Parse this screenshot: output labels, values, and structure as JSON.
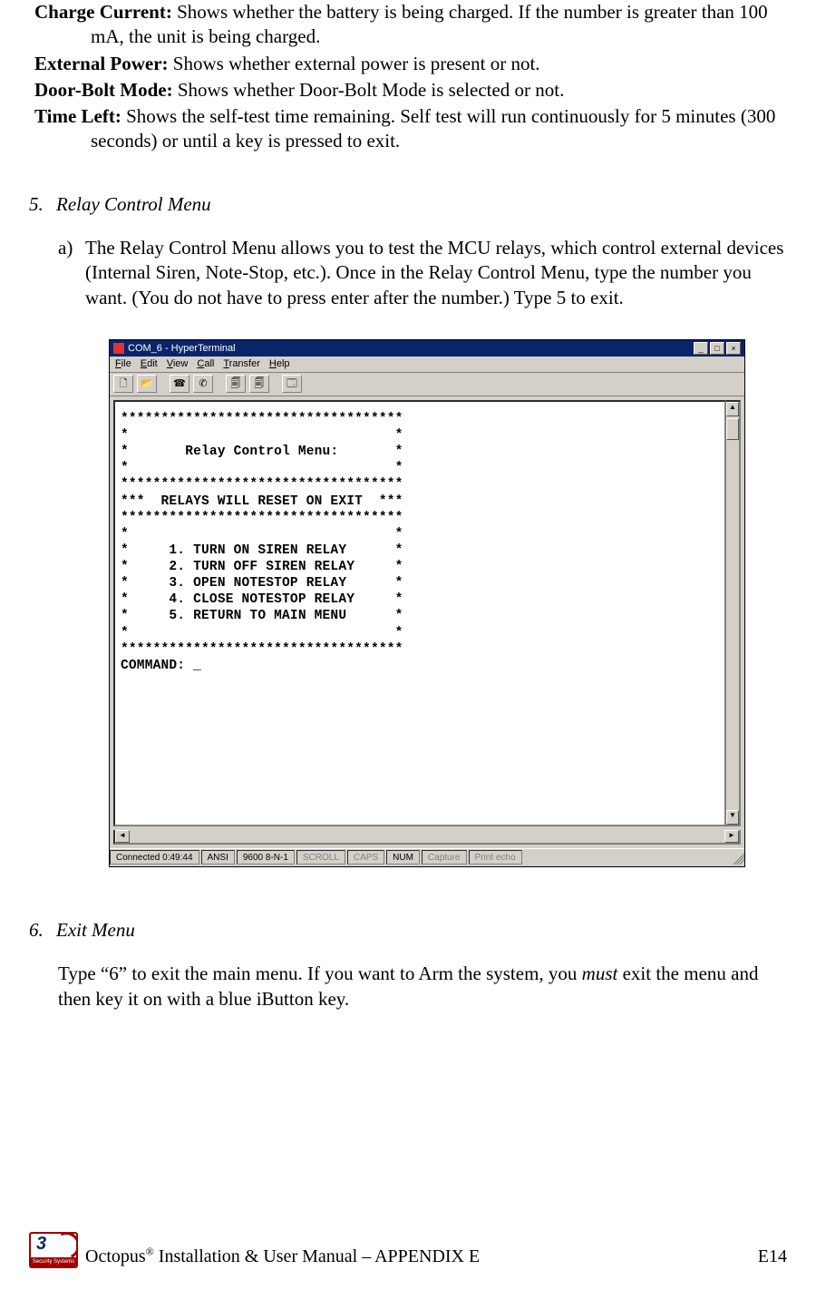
{
  "definitions": [
    {
      "term": "Charge Current:",
      "desc": " Shows whether the battery is being charged. If the number is greater than 100 mA, the unit is being charged."
    },
    {
      "term": "External Power:",
      "desc": " Shows whether external power is present or not."
    },
    {
      "term": "Door-Bolt Mode:",
      "desc": " Shows whether Door-Bolt Mode is selected or not."
    },
    {
      "term": "Time Left:",
      "desc": " Shows the self-test time remaining. Self test will run continuously for 5 minutes (300 seconds) or until a key is pressed to exit."
    }
  ],
  "section5": {
    "number": "5.",
    "title": "Relay Control Menu",
    "item_a_label": "a)",
    "item_a_text": "The Relay Control Menu allows you to test the MCU relays, which control external devices (Internal Siren, Note-Stop, etc.). Once in the Relay Control Menu, type the number you want. (You do not have to press enter after the number.) Type 5 to exit."
  },
  "hyperterminal": {
    "title": "COM_6 - HyperTerminal",
    "menus": [
      "File",
      "Edit",
      "View",
      "Call",
      "Transfer",
      "Help"
    ],
    "terminal_lines": [
      "***********************************",
      "*                                 *",
      "*       Relay Control Menu:       *",
      "*                                 *",
      "***********************************",
      "***  RELAYS WILL RESET ON EXIT  ***",
      "***********************************",
      "*                                 *",
      "*     1. TURN ON SIREN RELAY      *",
      "*     2. TURN OFF SIREN RELAY     *",
      "*     3. OPEN NOTESTOP RELAY      *",
      "*     4. CLOSE NOTESTOP RELAY     *",
      "*     5. RETURN TO MAIN MENU      *",
      "*                                 *",
      "***********************************",
      "COMMAND: _"
    ],
    "status": {
      "connected": "Connected 0:49:44",
      "emulation": "ANSI",
      "settings": "9600 8-N-1",
      "scroll": "SCROLL",
      "caps": "CAPS",
      "num": "NUM",
      "capture": "Capture",
      "printecho": "Print echo"
    }
  },
  "section6": {
    "number": "6.",
    "title": "Exit Menu",
    "body_pre": "Type “6” to exit the main menu. If you want to Arm the system, you ",
    "body_em": "must",
    "body_post": " exit the menu and then key it on with a blue iButton key."
  },
  "footer": {
    "logo_num": "3",
    "logo_bar": "Security Systems",
    "text_pre": "Octopus",
    "text_post": " Installation & User Manual – APPENDIX E",
    "page": "E14"
  }
}
